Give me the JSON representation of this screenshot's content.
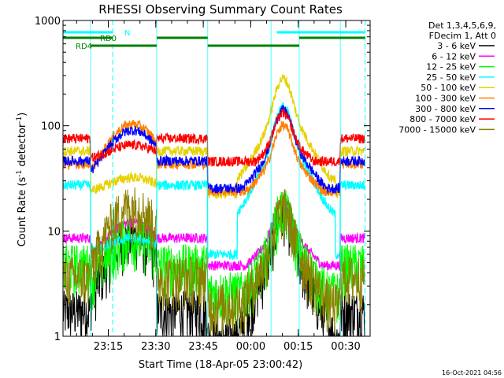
{
  "chart_data": {
    "type": "line",
    "title": "RHESSI Observing Summary Count Rates",
    "xlabel": "Start Time (18-Apr-05 23:00:42)",
    "ylabel_text": "Count Rate (s",
    "ylabel_sup": "-1",
    "ylabel_suffix": " detector",
    "ylabel_close": ")",
    "yscale": "log",
    "ylim": [
      1,
      1000
    ],
    "xlim_minutes": [
      0,
      97
    ],
    "x_ticks": [
      {
        "label": "23:15",
        "minute": 14.3
      },
      {
        "label": "23:30",
        "minute": 29.3
      },
      {
        "label": "23:45",
        "minute": 44.3
      },
      {
        "label": "00:00",
        "minute": 59.3
      },
      {
        "label": "00:15",
        "minute": 74.3
      },
      {
        "label": "00:30",
        "minute": 89.3
      }
    ],
    "y_ticks": [
      {
        "label": "1",
        "value": 1
      },
      {
        "label": "10",
        "value": 10
      },
      {
        "label": "100",
        "value": 100
      },
      {
        "label": "1000",
        "value": 1000
      }
    ],
    "legend_header": [
      "Det 1,3,4,5,6,9,",
      "FDecim 1, Att 0"
    ],
    "series": [
      {
        "name": "3 - 6 keV",
        "color": "#000000",
        "quiet": 1.6,
        "orbit": 8,
        "flare": 14
      },
      {
        "name": "6 - 12 keV",
        "color": "#ff00ff",
        "quiet": 8.5,
        "orbit": 12,
        "flare": 19
      },
      {
        "name": "12 - 25 keV",
        "color": "#00ff00",
        "quiet": 4.4,
        "orbit": 8,
        "flare": 15
      },
      {
        "name": "25 - 50 keV",
        "color": "#00ffff",
        "quiet": 27,
        "orbit": 8.5,
        "flare": 150
      },
      {
        "name": "50 - 100 keV",
        "color": "#e6d200",
        "quiet": 57,
        "orbit": 32,
        "flare": 280
      },
      {
        "name": "100 - 300 keV",
        "color": "#ff7f00",
        "quiet": 43,
        "orbit": 103,
        "flare": 100
      },
      {
        "name": "300 - 800 keV",
        "color": "#0000ff",
        "quiet": 46,
        "orbit": 90,
        "flare": 140
      },
      {
        "name": "800 - 7000 keV",
        "color": "#ff0000",
        "quiet": 75,
        "orbit": 65,
        "flare": 130
      },
      {
        "name": "7000 - 15000 keV",
        "color": "#8b8000",
        "quiet": 3.4,
        "orbit": 16,
        "flare": 15
      }
    ],
    "state_bars": [
      {
        "label": "N",
        "color": "#00ffff",
        "segments_minutes": [
          [
            0,
            15.7
          ],
          [
            67.5,
            95.4
          ]
        ]
      },
      {
        "label": "RD0",
        "color": "#008000",
        "segments_minutes": [
          [
            0,
            15.7
          ],
          [
            29.6,
            45.7
          ],
          [
            74.6,
            95.4
          ]
        ]
      },
      {
        "label": "RD4",
        "color": "#008000",
        "segments_minutes": [
          [
            8.7,
            29.6
          ],
          [
            45.7,
            74.6
          ]
        ]
      }
    ],
    "attenuator_lines_minutes": [
      15.7,
      95.4
    ],
    "night_lines_minutes": [
      8.7,
      29.6,
      45.7,
      65.7,
      74.6,
      87.6
    ],
    "footer_date": "16-Oct-2021 04:56"
  }
}
